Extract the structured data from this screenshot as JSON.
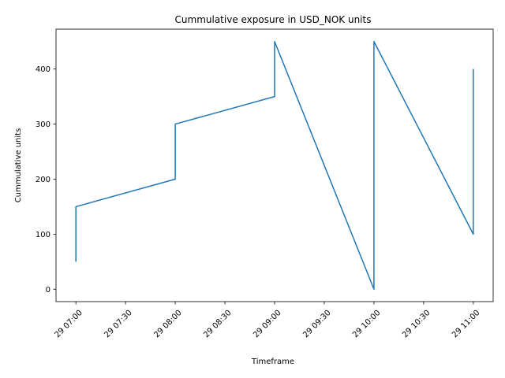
{
  "chart_data": {
    "type": "line",
    "title": "Cummulative exposure in USD_NOK units",
    "xlabel": "Timeframe",
    "ylabel": "Cummulative units",
    "x_tick_labels": [
      "29 07:00",
      "29 07:30",
      "29 08:00",
      "29 08:30",
      "29 09:00",
      "29 09:30",
      "29 10:00",
      "29 10:30",
      "29 11:00"
    ],
    "x_ticks_hours": [
      7.0,
      7.5,
      8.0,
      8.5,
      9.0,
      9.5,
      10.0,
      10.5,
      11.0
    ],
    "x_tick_rotation_deg": 45,
    "y_ticks": [
      0,
      100,
      200,
      300,
      400
    ],
    "xlim_hours": [
      6.8,
      11.2
    ],
    "ylim": [
      -22.5,
      472.5
    ],
    "grid": false,
    "line_color": "#1f77b4",
    "series": [
      {
        "x_hours": [
          7.0,
          7.0,
          8.0,
          8.0,
          9.0,
          9.0,
          10.0,
          10.0,
          11.0,
          11.0
        ],
        "x": [
          "29 07:00",
          "29 07:00",
          "29 08:00",
          "29 08:00",
          "29 09:00",
          "29 09:00",
          "29 10:00",
          "29 10:00",
          "29 11:00",
          "29 11:00"
        ],
        "y": [
          50,
          150,
          200,
          300,
          350,
          450,
          0,
          450,
          100,
          400
        ]
      }
    ]
  }
}
